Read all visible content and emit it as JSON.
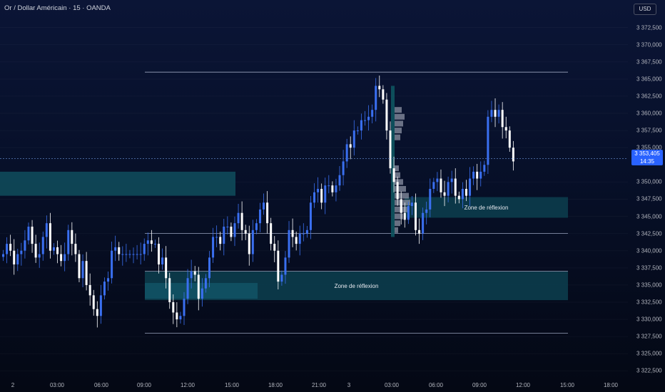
{
  "header": {
    "title": "Or / Dollar Américain · 15 · OANDA",
    "currency": "USD"
  },
  "last_price": {
    "value": "3 353,405",
    "countdown": "14:35"
  },
  "colors": {
    "up": "#3a6ff0",
    "down": "#ffffff",
    "zone": "#0f4a5a",
    "zone_dark": "#0c3846",
    "level": "#9aa3bd",
    "accent": "#2962ff"
  },
  "chart_data": {
    "type": "candlestick",
    "symbol": "XAUUSD",
    "interval": "15",
    "ylim": [
      3321.5,
      3376.5
    ],
    "y_ticks": [
      "3 372,500",
      "3 370,000",
      "3 367,500",
      "3 365,000",
      "3 362,500",
      "3 360,000",
      "3 357,500",
      "3 355,000",
      "3 350,000",
      "3 347,500",
      "3 345,000",
      "3 342,500",
      "3 340,000",
      "3 337,500",
      "3 335,000",
      "3 332,500",
      "3 330,000",
      "3 327,500",
      "3 325,000",
      "3 322,500"
    ],
    "x_ticks": [
      "2",
      "03:00",
      "06:00",
      "09:00",
      "12:00",
      "15:00",
      "18:00",
      "21:00",
      "3",
      "03:00",
      "06:00",
      "09:00",
      "12:00",
      "15:00",
      "18:00"
    ],
    "closes": [
      3339.5,
      3341,
      3340,
      3338,
      3339.5,
      3340,
      3341.5,
      3343.5,
      3341,
      3339,
      3339.5,
      3342,
      3344,
      3340,
      3340.5,
      3339.5,
      3338.5,
      3339.5,
      3343,
      3341,
      3339.5,
      3336,
      3338.5,
      3335,
      3333.5,
      3331.5,
      3330.5,
      3333.5,
      3335.5,
      3336,
      3340,
      3340.5,
      3339.5,
      3339.5,
      3339.5,
      3339.5,
      3339.5,
      3339.5,
      3339.5,
      3341,
      3341.5,
      3341,
      3341,
      3338,
      3339,
      3336,
      3332.5,
      3331,
      3330,
      3330.5,
      3333,
      3336,
      3337,
      3336.5,
      3333,
      3334.5,
      3336,
      3339,
      3342,
      3342,
      3341,
      3343.5,
      3343.5,
      3342,
      3344,
      3345.5,
      3343,
      3342.5,
      3339.5,
      3343,
      3344,
      3346,
      3347,
      3344,
      3341,
      3340,
      3335.5,
      3336.5,
      3339,
      3343,
      3342,
      3341,
      3342.5,
      3342.5,
      3343,
      3347,
      3348.5,
      3349,
      3347,
      3349.5,
      3349.5,
      3348.5,
      3349.5,
      3351,
      3353,
      3355.5,
      3355,
      3357.5,
      3357.5,
      3359,
      3359,
      3359.5,
      3360.5,
      3364,
      3363.5,
      3362,
      3357.5,
      3352,
      3350,
      3347.5,
      3345.5,
      3344.5,
      3346.5,
      3347,
      3343,
      3342.5,
      3345.5,
      3346,
      3349,
      3350,
      3350.5,
      3348.5,
      3348,
      3350,
      3350.5,
      3348,
      3347.5,
      3349,
      3348,
      3350.5,
      3351.5,
      3350.5,
      3351.5,
      3352.5,
      3359.5,
      3360.5,
      3359.5,
      3360.5,
      3358,
      3357.5,
      3355,
      3353
    ],
    "level_lines": [
      3366,
      3342.5,
      3337,
      3328
    ],
    "zones": [
      {
        "label": "",
        "low": 3348,
        "high": 3351.5
      },
      {
        "label": "Zone de réflexion",
        "low": 3344.8,
        "high": 3347.8
      },
      {
        "label": "Zone de réflexion",
        "low": 3332.8,
        "high": 3337
      },
      {
        "label": "",
        "low": 3333,
        "high": 3335.3
      }
    ]
  }
}
